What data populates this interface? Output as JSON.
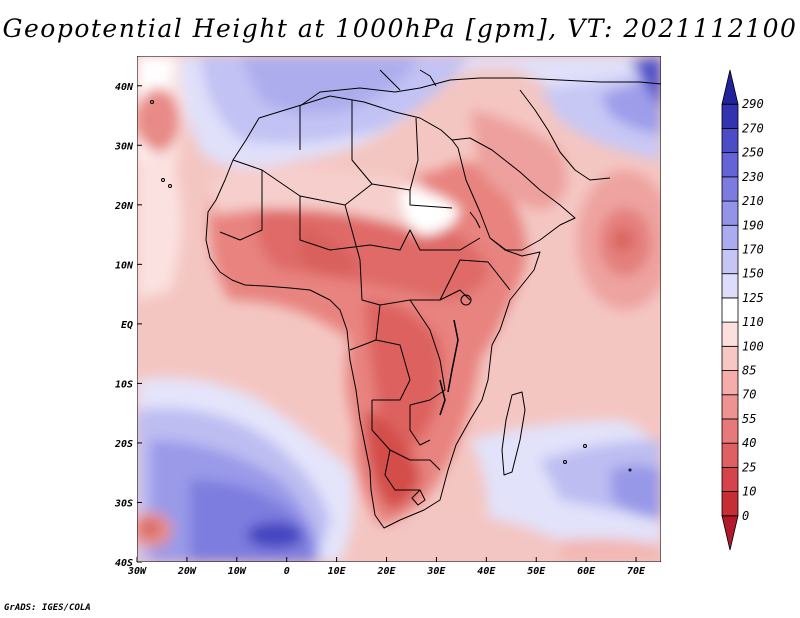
{
  "title": "Geopotential Height at 1000hPa [gpm], VT: 2021112100",
  "credit": "GrADS: IGES/COLA",
  "map": {
    "lon_range": [
      -30,
      75
    ],
    "lat_range": [
      -40,
      45
    ],
    "x_tick_labels": [
      "30W",
      "20W",
      "10W",
      "0",
      "10E",
      "20E",
      "30E",
      "40E",
      "50E",
      "60E",
      "70E"
    ],
    "y_tick_labels": [
      "40S",
      "30S",
      "20S",
      "10S",
      "EQ",
      "10N",
      "20N",
      "30N",
      "40N"
    ]
  },
  "colorbar": {
    "labels": [
      "0",
      "10",
      "25",
      "40",
      "55",
      "70",
      "85",
      "100",
      "110",
      "125",
      "150",
      "170",
      "190",
      "210",
      "230",
      "250",
      "270",
      "290"
    ],
    "colors": [
      "#b2182b",
      "#c62e36",
      "#d5444b",
      "#e05f62",
      "#e8797a",
      "#ef9392",
      "#f4adaa",
      "#f8c7c4",
      "#fbe0de",
      "#ffffff",
      "#dcdcfb",
      "#c6c6f6",
      "#ababef",
      "#9393e8",
      "#7b7be0",
      "#6464d6",
      "#4c4cc6",
      "#3333b0",
      "#22229a"
    ]
  },
  "legend_colors": {
    "ocean_base": "#f4c6c2",
    "land_warm": "#e8827f",
    "land_hot": "#d85652",
    "high_blue": "#8a8ae6",
    "max_blue": "#5a5ad2",
    "border": "#000000"
  }
}
